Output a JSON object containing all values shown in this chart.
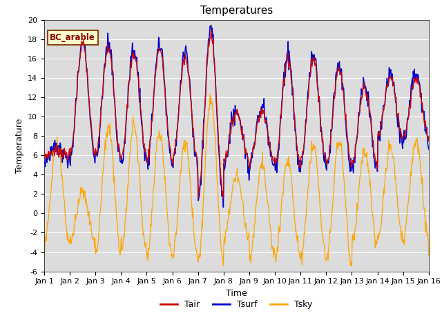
{
  "title": "Temperatures",
  "xlabel": "Time",
  "ylabel": "Temperature",
  "ylim": [
    -6,
    20
  ],
  "yticks": [
    -6,
    -4,
    -2,
    0,
    2,
    4,
    6,
    8,
    10,
    12,
    14,
    16,
    18,
    20
  ],
  "xtick_labels": [
    "Jan 1",
    "Jan 2",
    "Jan 3",
    "Jan 4",
    "Jan 5",
    "Jan 6",
    "Jan 7",
    "Jan 8",
    "Jan 9",
    "Jan 10",
    "Jan 11",
    "Jan 12",
    "Jan 13",
    "Jan 14",
    "Jan 15",
    "Jan 16"
  ],
  "annotation": "BC_arable",
  "bg_color": "#dcdcdc",
  "line_colors": {
    "Tair": "#cc0000",
    "Tsurf": "#0000cc",
    "Tsky": "#ffa500"
  },
  "n_points": 720,
  "title_fontsize": 11,
  "axis_label_fontsize": 9,
  "tick_fontsize": 8
}
